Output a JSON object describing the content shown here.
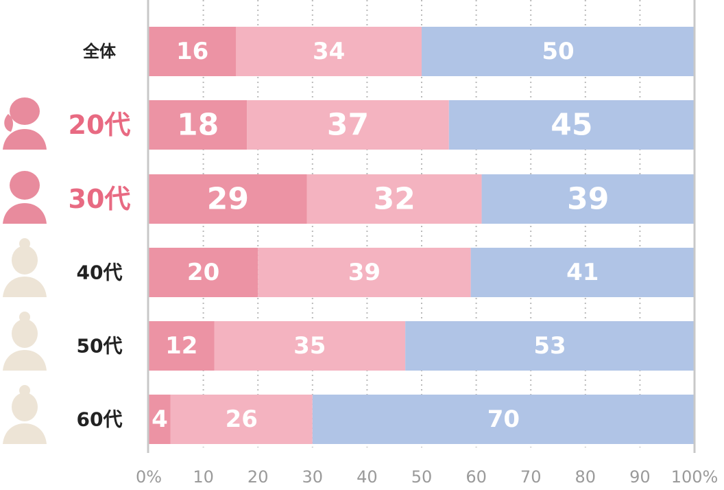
{
  "chart_data": {
    "type": "bar",
    "orientation": "horizontal",
    "stacked": true,
    "categories": [
      "全体",
      "20代",
      "30代",
      "40代",
      "50代",
      "60代"
    ],
    "highlighted_categories": [
      "20代",
      "30代"
    ],
    "series": [
      {
        "values": [
          16,
          18,
          29,
          20,
          12,
          4
        ],
        "color": "#ec93a4"
      },
      {
        "values": [
          34,
          37,
          32,
          39,
          35,
          26
        ],
        "color": "#f4b3c0"
      },
      {
        "values": [
          50,
          45,
          39,
          41,
          53,
          70
        ],
        "color": "#b0c4e6"
      }
    ],
    "xlim": [
      0,
      100
    ],
    "x_ticks": [
      "0%",
      "10",
      "20",
      "30",
      "40",
      "50",
      "60",
      "70",
      "80",
      "90",
      "100%"
    ],
    "grid": true,
    "legend": "none"
  },
  "colors": {
    "highlight_text": "#e86a82",
    "normal_text": "#222222",
    "axis": "#c8c8c8",
    "grid": "#b9b9b9",
    "avatar_pink": "#e88b9d",
    "avatar_beige": "#ede4d6"
  },
  "icons": [
    "woman-avatar-icon",
    "woman-avatar-icon",
    "woman-avatar-icon",
    "woman-avatar-icon",
    "woman-avatar-icon"
  ]
}
